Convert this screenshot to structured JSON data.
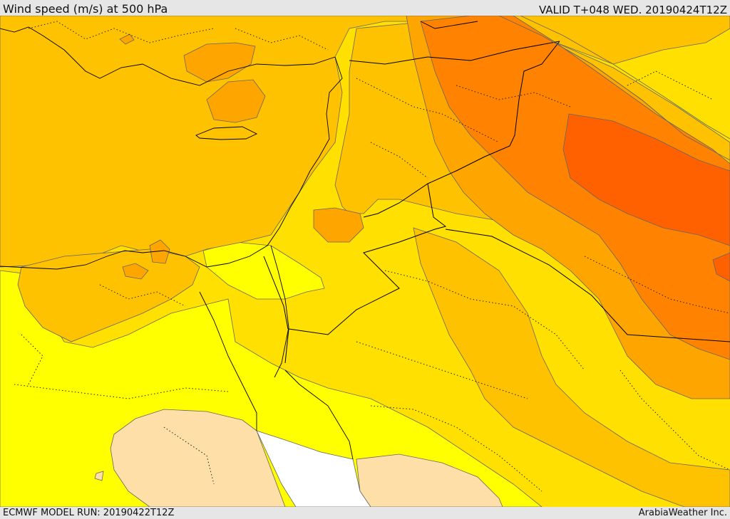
{
  "header": {
    "title": "Wind speed (m/s) at 500 hPa",
    "valid_time": "VALID T+048 WED. 20190424T12Z"
  },
  "footer": {
    "model_run": "ECMWF MODEL RUN: 20190422T12Z",
    "credit": "ArabiaWeather Inc."
  },
  "map": {
    "region": "Eastern Mediterranean / Middle East",
    "field": "500 hPa wind speed",
    "shading_colors": {
      "lowest": "#ffffff",
      "low": "#ffdfa8",
      "light": "#ffff00",
      "moderate": "#ffe000",
      "elevated": "#ffc200",
      "high": "#ffa500",
      "higher": "#ff8200",
      "highest": "#ff6000"
    },
    "contour_color": "#555555",
    "border_color": "#000000"
  }
}
